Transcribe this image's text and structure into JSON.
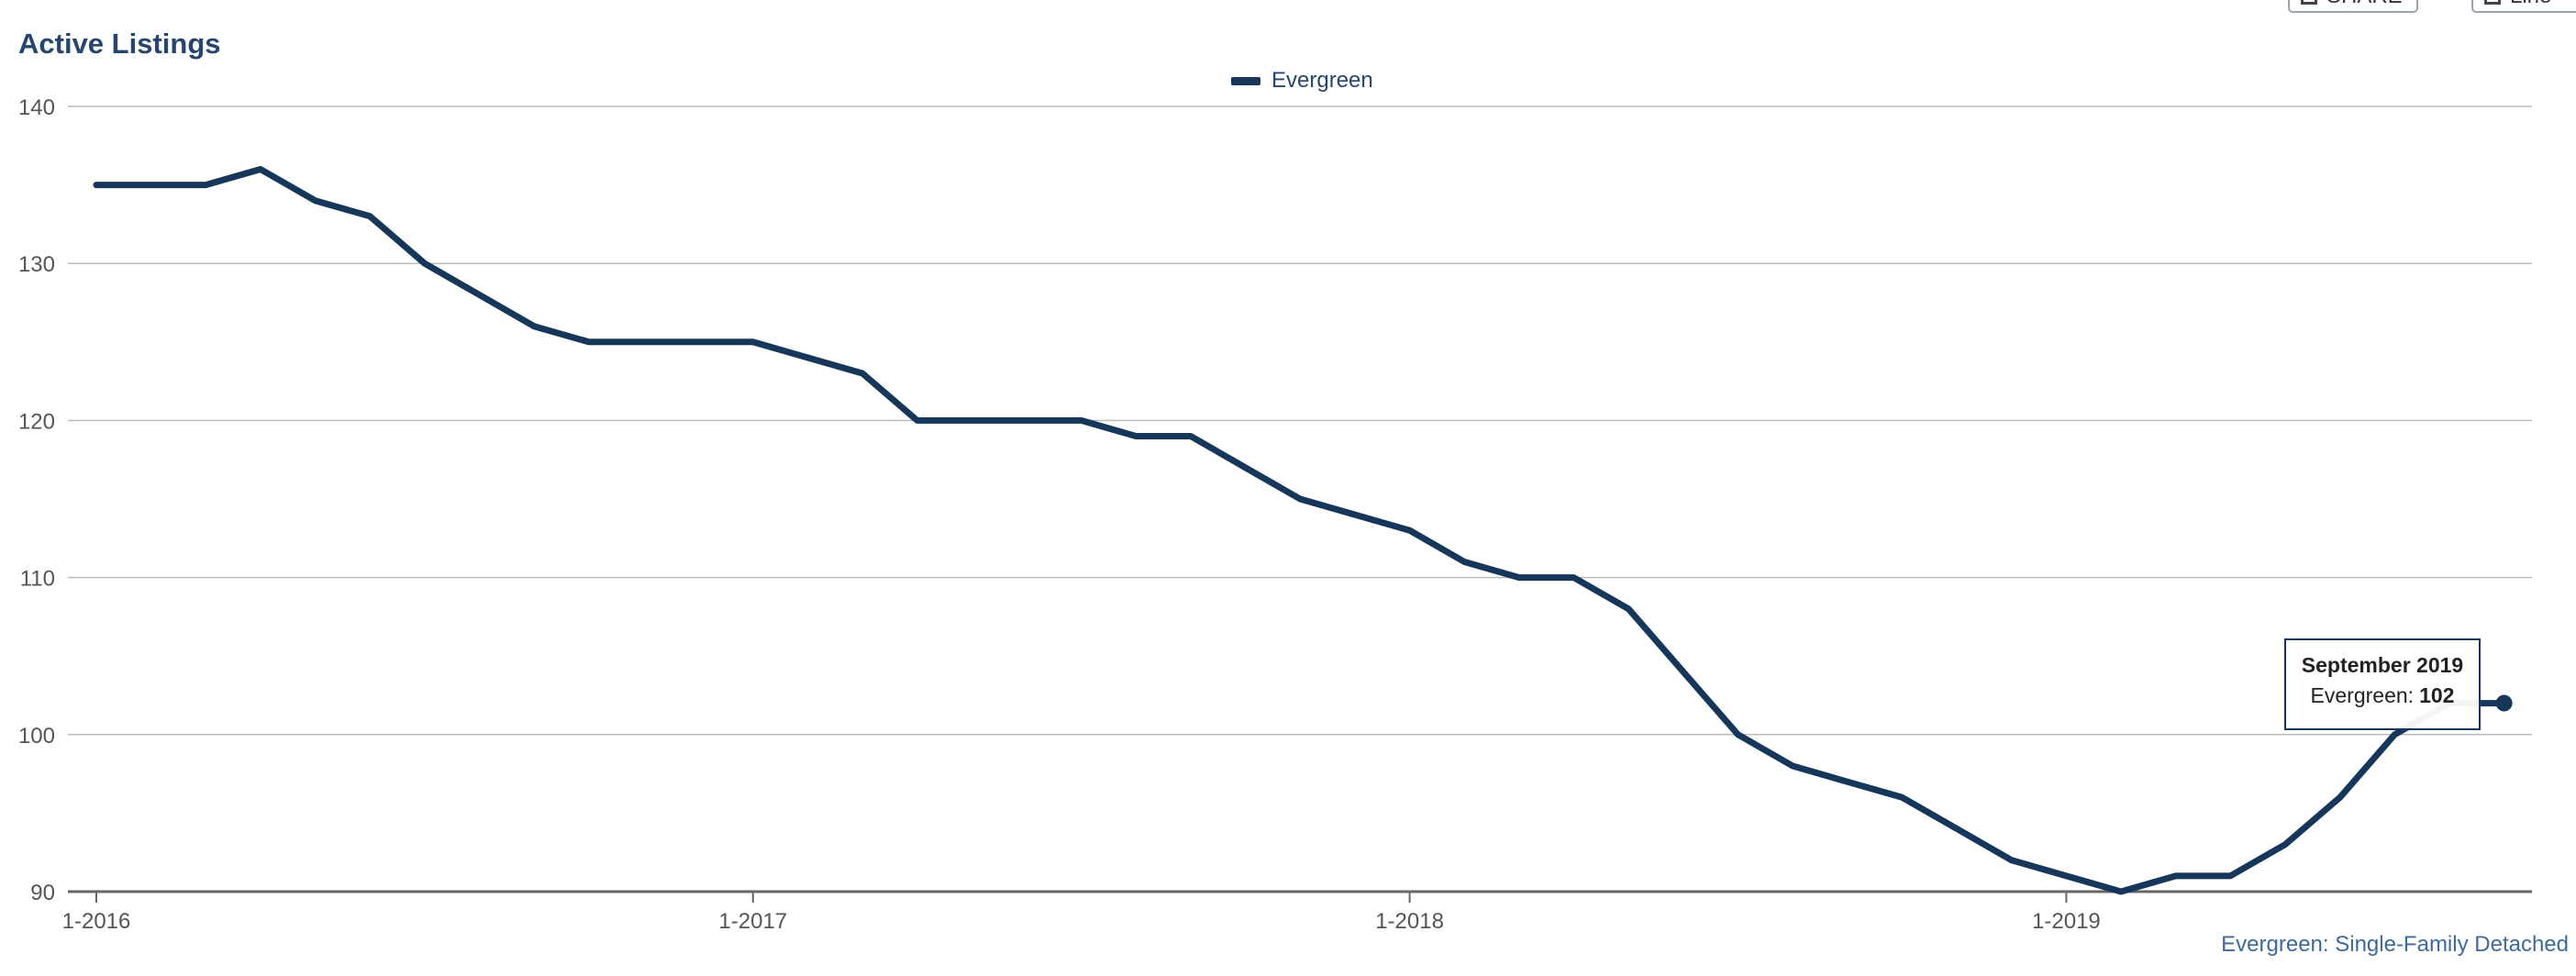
{
  "header": {
    "title": "Active Listings",
    "share_label": "SHARE",
    "chart_type_label": "Line"
  },
  "legend": {
    "label": "Evergreen"
  },
  "tooltip": {
    "date": "September 2019",
    "series": "Evergreen:",
    "value": "102"
  },
  "source_note": "Evergreen: Single-Family Detached",
  "colors": {
    "line": "#16365a",
    "title": "#26466d",
    "grid": "#bbbbbb"
  },
  "chart_data": {
    "type": "line",
    "title": "Active Listings",
    "xlabel": "",
    "ylabel": "",
    "x_tick_labels": [
      "1-2016",
      "1-2017",
      "1-2018",
      "1-2019"
    ],
    "y_ticks": [
      90,
      100,
      110,
      120,
      130,
      140
    ],
    "ylim": [
      90,
      140
    ],
    "x": [
      "2016-01",
      "2016-02",
      "2016-03",
      "2016-04",
      "2016-05",
      "2016-06",
      "2016-07",
      "2016-08",
      "2016-09",
      "2016-10",
      "2016-11",
      "2016-12",
      "2017-01",
      "2017-02",
      "2017-03",
      "2017-04",
      "2017-05",
      "2017-06",
      "2017-07",
      "2017-08",
      "2017-09",
      "2017-10",
      "2017-11",
      "2017-12",
      "2018-01",
      "2018-02",
      "2018-03",
      "2018-04",
      "2018-05",
      "2018-06",
      "2018-07",
      "2018-08",
      "2018-09",
      "2018-10",
      "2018-11",
      "2018-12",
      "2019-01",
      "2019-02",
      "2019-03",
      "2019-04",
      "2019-05",
      "2019-06",
      "2019-07",
      "2019-08",
      "2019-09"
    ],
    "series": [
      {
        "name": "Evergreen",
        "values": [
          135,
          135,
          135,
          136,
          134,
          133,
          130,
          128,
          126,
          125,
          125,
          125,
          125,
          124,
          123,
          120,
          120,
          120,
          120,
          119,
          119,
          117,
          115,
          114,
          113,
          111,
          110,
          110,
          108,
          104,
          100,
          98,
          97,
          96,
          94,
          92,
          91,
          90,
          91,
          91,
          93,
          96,
          100,
          102,
          102
        ]
      }
    ],
    "grid": true,
    "legend_position": "top-center"
  }
}
